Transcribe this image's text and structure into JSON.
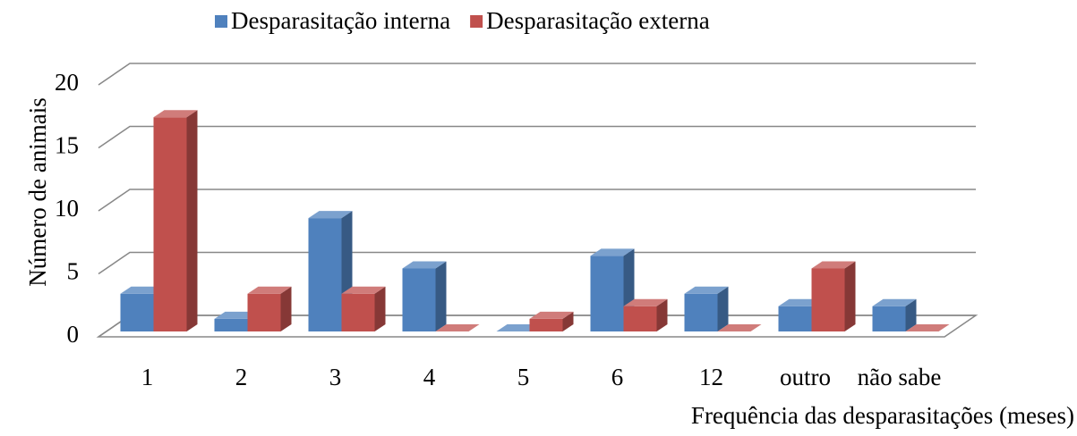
{
  "chart_data": {
    "type": "bar3d",
    "x_label": "Frequência das desparasitações (meses)",
    "y_label": "Número de animais",
    "categories": [
      "1",
      "2",
      "3",
      "4",
      "5",
      "6",
      "12",
      "outro",
      "não sabe"
    ],
    "series": [
      {
        "name": "Desparasitação interna",
        "color": "#4f81bd",
        "values": [
          3,
          1,
          9,
          5,
          0,
          6,
          3,
          2,
          2
        ]
      },
      {
        "name": "Desparasitação externa",
        "color": "#c0504d",
        "values": [
          17,
          3,
          3,
          0,
          1,
          2,
          0,
          5,
          0
        ]
      }
    ],
    "ylim": [
      0,
      20
    ],
    "yticks": [
      0,
      5,
      10,
      15,
      20
    ],
    "grid": true,
    "legend": "top"
  }
}
